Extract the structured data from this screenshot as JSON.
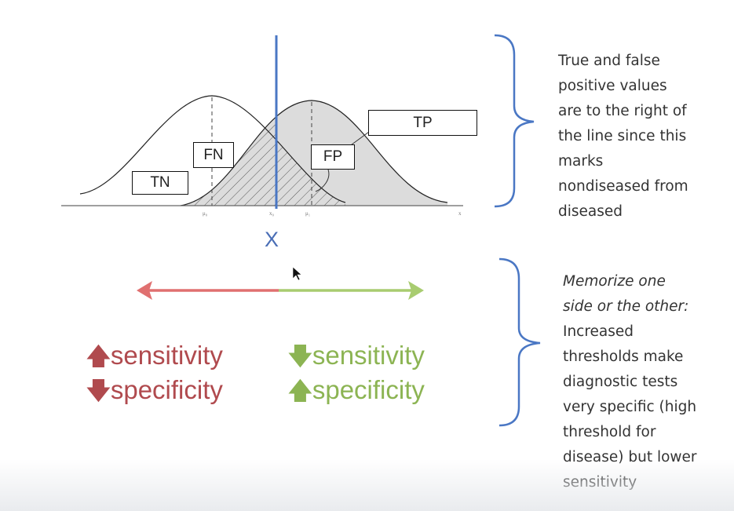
{
  "diagram": {
    "boxes": {
      "tn": "TN",
      "fn": "FN",
      "fp": "FP",
      "tp": "TP"
    },
    "ticks": {
      "mu0": "μ₀",
      "xc": "x₀",
      "mu1": "μ₁",
      "xend": "x"
    },
    "threshold_label": "X"
  },
  "arrow": {
    "left_color": "#e07070",
    "right_color": "#a8cc70"
  },
  "left_effect": {
    "line1_glyph": "🡅",
    "line1_word": "sensitivity",
    "line2_glyph": "🡇",
    "line2_word": "specificity",
    "color": "#b04a4e"
  },
  "right_effect": {
    "line1_glyph": "🡇",
    "line1_word": "sensitivity",
    "line2_glyph": "🡅",
    "line2_word": "specificity",
    "color": "#8cb453"
  },
  "notes": {
    "top": [
      "True and false",
      "positive values",
      "are to the right of",
      "the line since this",
      "marks",
      "nondiseased from",
      "diseased"
    ],
    "bottom_italic": [
      "Memorize one",
      "side or the other:"
    ],
    "bottom_plain": [
      "Increased",
      "thresholds make",
      "diagnostic tests",
      "very specific (high",
      "threshold for",
      "disease) but lower",
      "sensitivity"
    ]
  },
  "colors": {
    "threshold_line": "#4a77c4",
    "bracket": "#4a77c4",
    "curve_fill": "#dcdcdc"
  }
}
